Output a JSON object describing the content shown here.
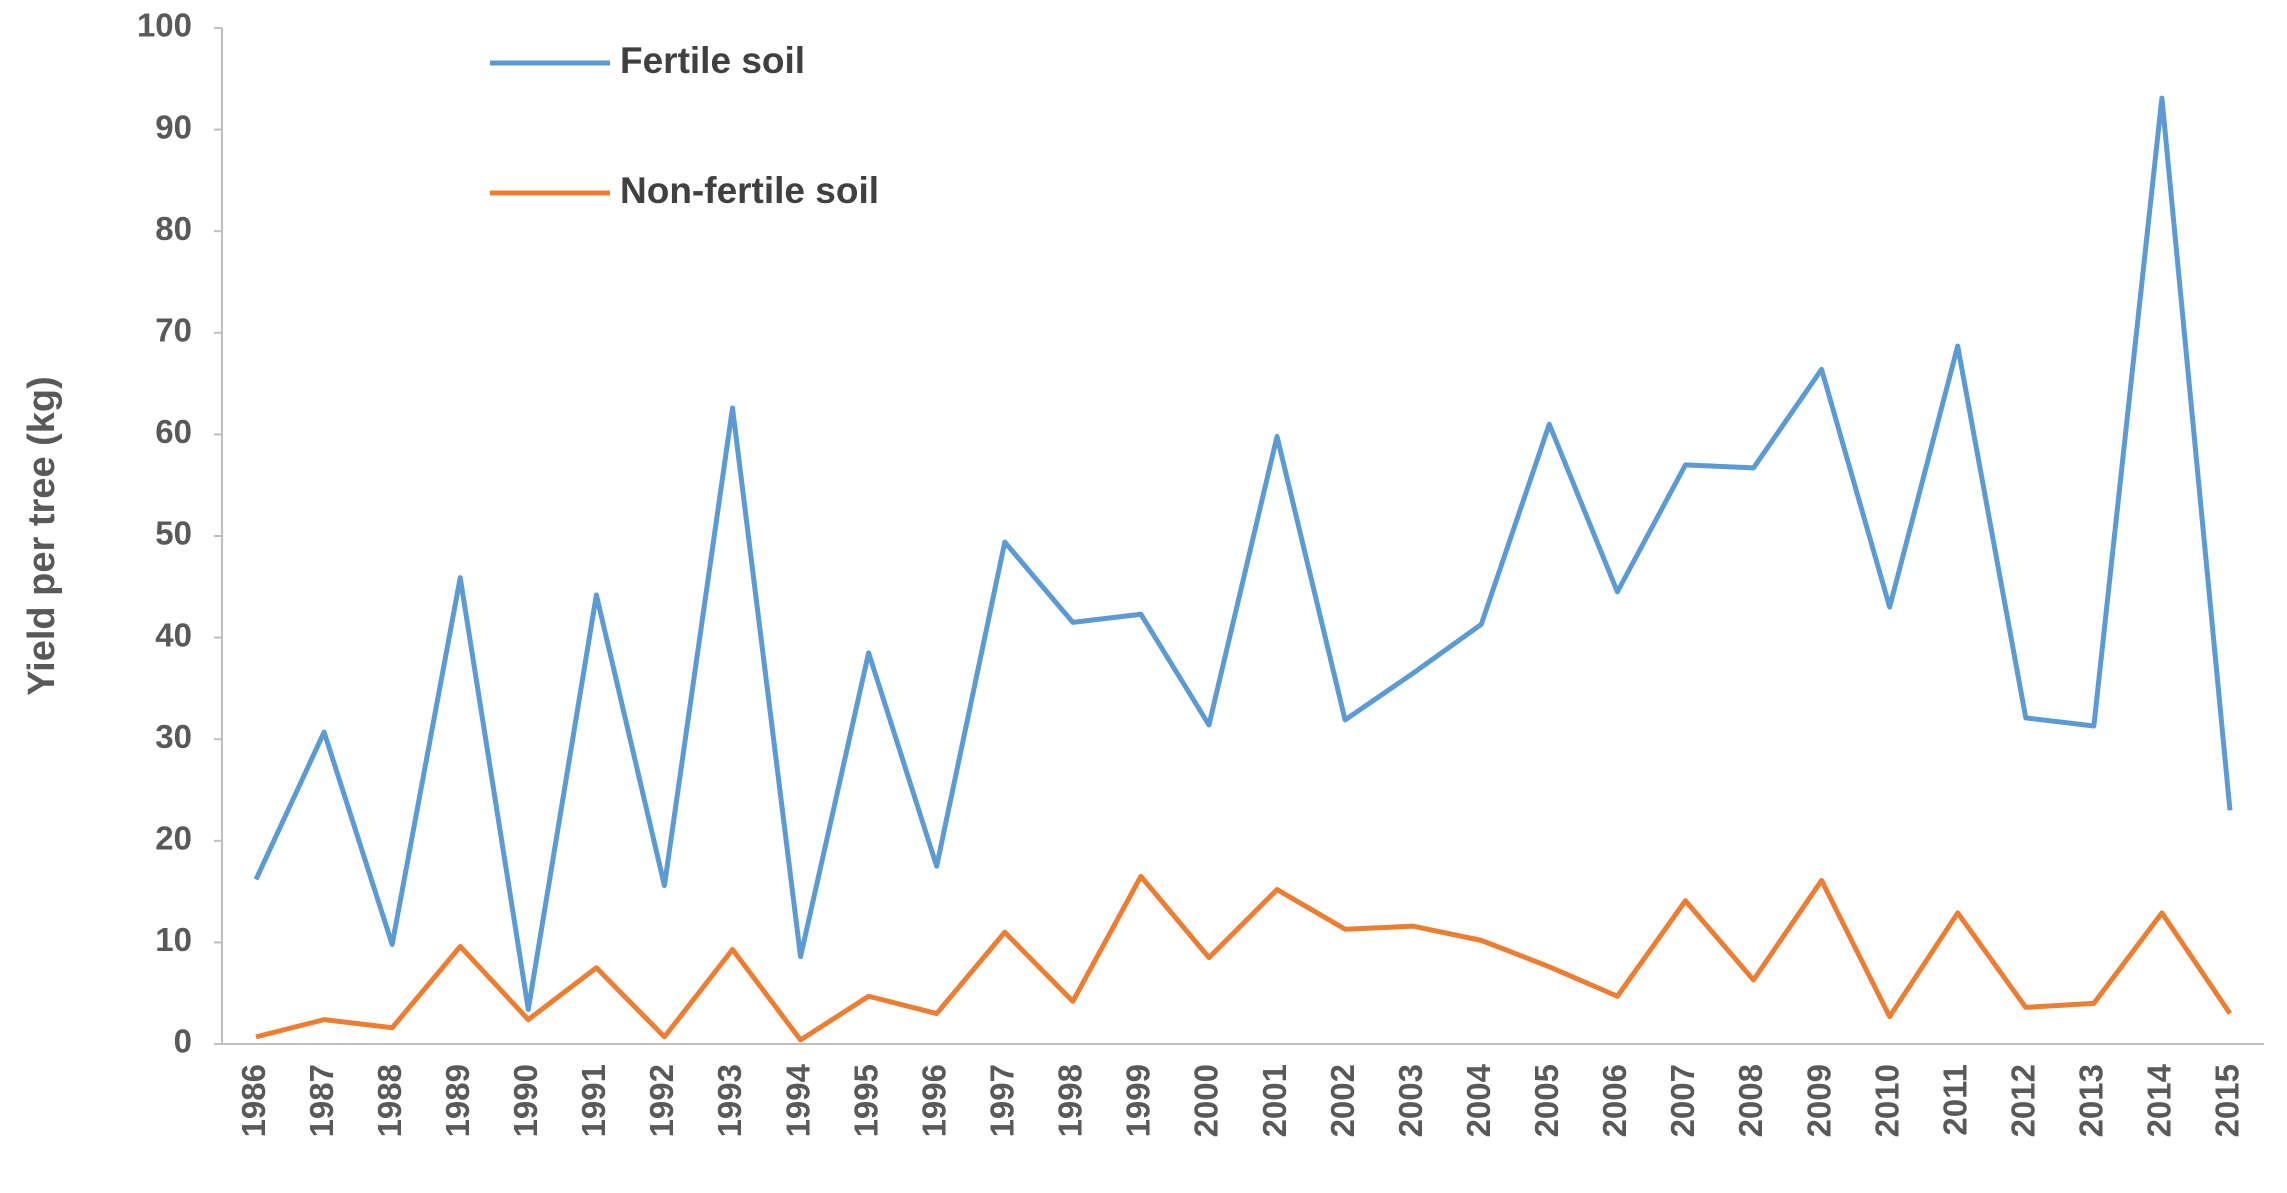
{
  "chart_data": {
    "type": "line",
    "y_label": "Yield per tree (kg)",
    "categories": [
      "1986",
      "1987",
      "1988",
      "1989",
      "1990",
      "1991",
      "1992",
      "1993",
      "1994",
      "1995",
      "1996",
      "1997",
      "1998",
      "1999",
      "2000",
      "2001",
      "2002",
      "2003",
      "2004",
      "2005",
      "2006",
      "2007",
      "2008",
      "2009",
      "2010",
      "2011",
      "2012",
      "2013",
      "2014",
      "2015"
    ],
    "series": [
      {
        "name": "Fertile soil",
        "color": "#5b9bd5",
        "values": [
          16.2,
          30.7,
          9.8,
          45.9,
          3.4,
          44.2,
          15.6,
          62.6,
          8.6,
          38.5,
          17.5,
          49.4,
          41.5,
          42.3,
          31.4,
          59.8,
          31.9,
          36.5,
          41.3,
          61.0,
          44.5,
          57.0,
          56.7,
          66.4,
          43.0,
          68.7,
          32.1,
          31.3,
          93.1,
          23.0
        ]
      },
      {
        "name": "Non-fertile soil",
        "color": "#ed7d31",
        "values": [
          0.7,
          2.4,
          1.6,
          9.6,
          2.4,
          7.5,
          0.7,
          9.3,
          0.4,
          4.7,
          3.0,
          11.0,
          4.2,
          16.5,
          8.5,
          15.2,
          11.3,
          11.6,
          10.2,
          7.6,
          4.7,
          14.1,
          6.3,
          16.1,
          2.7,
          12.9,
          3.6,
          4.0,
          12.9,
          3.0
        ]
      }
    ],
    "ylim": [
      0,
      100
    ],
    "yticks": [
      0,
      10,
      20,
      30,
      40,
      50,
      60,
      70,
      80,
      90,
      100
    ],
    "grid": false,
    "legend": "top-left"
  }
}
